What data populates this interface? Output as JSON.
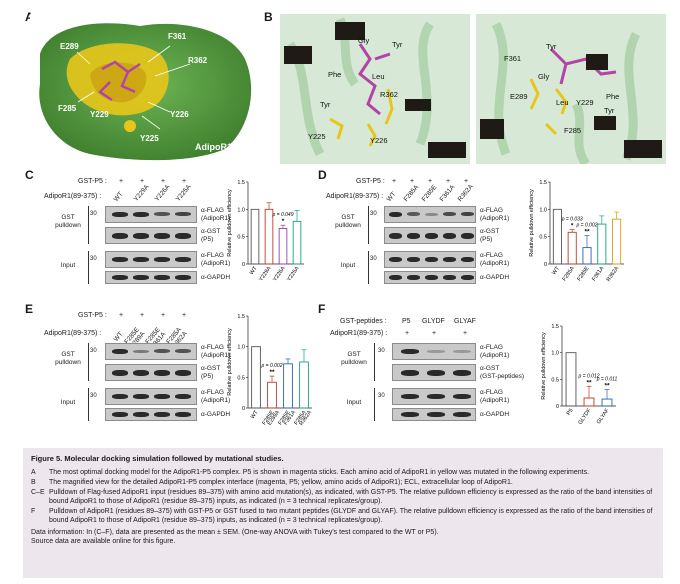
{
  "panels": {
    "A": {
      "letter": "A",
      "labels": [
        "E289",
        "F361",
        "R362",
        "F285",
        "Y229",
        "Y226",
        "Y225"
      ],
      "protein_label": "AdipoR1",
      "colors": {
        "surface": "#4f9a3c",
        "highlight": "#e8c619",
        "ligand": "#b244a7"
      }
    },
    "B": {
      "letter": "B",
      "left_labels": [
        "Gly",
        "Tyr",
        "Phe",
        "Leu",
        "R362",
        "Tyr",
        "Y225",
        "Y226"
      ],
      "right_labels": [
        "Tyr",
        "F361",
        "Gly",
        "E289",
        "Leu",
        "Y229",
        "Phe",
        "F285",
        "Tyr"
      ]
    },
    "C": {
      "letter": "C",
      "gst_label": "GST-P5 :",
      "adipo_label": "AdipoR1(89-375) :",
      "plus_row": [
        "+",
        "+",
        "+",
        "+"
      ],
      "columns": [
        "WT",
        "Y229A",
        "Y226A",
        "Y225A"
      ],
      "mw": [
        "30",
        "30",
        "30"
      ],
      "bands": [
        "α-FLAG\n(AdipoR1)",
        "α-GST\n(P5)",
        "α-FLAG\n(AdipoR1)",
        "α-GAPDH"
      ],
      "side": [
        "GST\npulldown",
        "Input"
      ]
    },
    "D": {
      "letter": "D",
      "gst_label": "GST-P5 :",
      "adipo_label": "AdipoR1(89-375) :",
      "plus_row": [
        "+",
        "+",
        "+",
        "+",
        "+"
      ],
      "columns": [
        "WT",
        "F285A",
        "F285E",
        "F361A",
        "R362A"
      ],
      "mw": [
        "30",
        "30",
        "30"
      ],
      "bands": [
        "α-FLAG\n(AdipoR1)",
        "α-GST\n(P5)",
        "α-FLAG\n(AdipoR1)",
        "α-GAPDH"
      ],
      "side": [
        "GST\npulldown",
        "Input"
      ]
    },
    "E": {
      "letter": "E",
      "gst_label": "GST-P5 :",
      "adipo_label": "AdipoR1(89-375) :",
      "plus_row": [
        "+",
        "+",
        "+",
        "+"
      ],
      "columns": [
        "WT",
        "F285E\nE289A",
        "F285E\nF361A",
        "F285A\nR362A"
      ],
      "mw": [
        "30",
        "30",
        "30"
      ],
      "bands": [
        "α-FLAG\n(AdipoR1)",
        "α-GST\n(P5)",
        "α-FLAG\n(AdipoR1)",
        "α-GAPDH"
      ],
      "side": [
        "GST\npulldown",
        "Input"
      ]
    },
    "F": {
      "letter": "F",
      "gst_label": "GST-peptides :",
      "adipo_label": "AdipoR1(89-375) :",
      "peptide_cols": [
        "P5",
        "GLYDF",
        "GLYAF"
      ],
      "plus_row": [
        "+",
        "+",
        "+"
      ],
      "mw": [
        "30",
        "30",
        "30"
      ],
      "bands": [
        "α-FLAG\n(AdipoR1)",
        "α-GST\n(GST-peptides)",
        "α-FLAG\n(AdipoR1)",
        "α-GAPDH"
      ],
      "side": [
        "GST\npulldown",
        "Input"
      ]
    }
  },
  "chart_data": [
    {
      "panel": "C",
      "type": "bar",
      "categories": [
        "WT",
        "Y229A",
        "Y226A",
        "Y225A"
      ],
      "values": [
        1.0,
        1.0,
        0.65,
        0.78
      ],
      "errors": [
        0.0,
        0.12,
        0.06,
        0.2
      ],
      "colors": [
        "#555555",
        "#c0392b",
        "#8e44ad",
        "#16a085"
      ],
      "ylabel": "Relative pulldown efficiency",
      "ylim": [
        0,
        1.5
      ],
      "yticks": [
        "0",
        "0.5",
        "1.0",
        "1.5"
      ],
      "annotations": [
        {
          "category": "Y226A",
          "p": "p = 0.049",
          "stars": "*"
        }
      ]
    },
    {
      "panel": "D",
      "type": "bar",
      "categories": [
        "WT",
        "F285A",
        "F285E",
        "F361A",
        "R362A"
      ],
      "values": [
        1.0,
        0.58,
        0.3,
        0.73,
        0.82
      ],
      "errors": [
        0.0,
        0.05,
        0.22,
        0.15,
        0.13
      ],
      "colors": [
        "#555555",
        "#c0392b",
        "#2f5fb3",
        "#16a085",
        "#d4a017"
      ],
      "ylabel": "Relative pulldown efficiency",
      "ylim": [
        0,
        1.5
      ],
      "yticks": [
        "0",
        "0.5",
        "1.0",
        "1.5"
      ],
      "annotations": [
        {
          "category": "F285A",
          "p": "p = 0.033",
          "stars": "*"
        },
        {
          "category": "F285E",
          "p": "p = 0.002",
          "stars": "**"
        }
      ]
    },
    {
      "panel": "E",
      "type": "bar",
      "categories": [
        "WT",
        "F285E\nE289A",
        "F285E\nF361A",
        "F285A\nR362A"
      ],
      "values": [
        1.0,
        0.42,
        0.72,
        0.75
      ],
      "errors": [
        0.0,
        0.1,
        0.08,
        0.2
      ],
      "colors": [
        "#555555",
        "#c0392b",
        "#2f5fb3",
        "#16a085"
      ],
      "ylabel": "Relative pulldown efficiency",
      "ylim": [
        0,
        1.5
      ],
      "yticks": [
        "0",
        "0.5",
        "1.0",
        "1.5"
      ],
      "annotations": [
        {
          "category": "F285E\nE289A",
          "p": "p = 0.002",
          "stars": "**"
        }
      ]
    },
    {
      "panel": "F",
      "type": "bar",
      "categories": [
        "P5",
        "GLYDF",
        "GLYAF"
      ],
      "values": [
        1.0,
        0.15,
        0.13
      ],
      "errors": [
        0.0,
        0.22,
        0.18
      ],
      "colors": [
        "#555555",
        "#c0392b",
        "#2f5fb3"
      ],
      "ylabel": "Relative pulldown efficiency",
      "ylim": [
        0,
        1.5
      ],
      "yticks": [
        "0",
        "0.5",
        "1.0",
        "1.5"
      ],
      "annotations": [
        {
          "category": "GLYDF",
          "p": "p = 0.012",
          "stars": "**"
        },
        {
          "category": "GLYAF",
          "p": "p = 0.011",
          "stars": "**"
        }
      ]
    }
  ],
  "caption": {
    "title": "Figure 5.   Molecular docking simulation followed by mutational studies.",
    "items": [
      {
        "key": "A",
        "text": "The most optimal docking model for the AdipoR1-P5 complex. P5 is shown in magenta sticks. Each amino acid of AdipoR1 in yellow was mutated in the following experiments."
      },
      {
        "key": "B",
        "text": "The magnified view for the detailed AdipoR1-P5 complex interface (magenta, P5; yellow, amino acids of AdipoR1); ECL, extracellular loop of AdipoR1."
      },
      {
        "key": "C–E",
        "text": "Pulldown of Flag-fused AdipoR1 input (residues 89–375) with amino acid mutation(s), as indicated, with GST-P5. The relative pulldown efficiency is expressed as the ratio of the band intensities of bound AdipoR1 to those of AdipoR1 (residue 89–375) inputs, as indicated (n = 3 technical replicates/group)."
      },
      {
        "key": "F",
        "text": "Pulldown of AdipoR1 (residues 89–375) with GST-P5 or GST fused to two mutant peptides (GLYDF and GLYAF). The relative pulldown efficiency is expressed as the ratio of the band intensities of bound AdipoR1 to those of AdipoR1 (residue 89–375) inputs, as indicated (n = 3 technical replicates/group)."
      }
    ],
    "data_info": "Data information: In (C–F), data are presented as the mean ± SEM. (One-way ANOVA with Tukey's test compared to the WT or P5).",
    "source_info": "Source data are available online for this figure."
  }
}
